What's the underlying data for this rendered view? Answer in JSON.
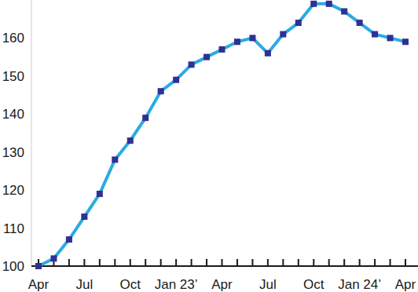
{
  "chart_data": {
    "type": "line",
    "categories": [
      "Apr",
      null,
      null,
      "Jul",
      null,
      null,
      "Oct",
      null,
      null,
      "Jan 23’",
      null,
      null,
      "Apr",
      null,
      null,
      "Jul",
      null,
      null,
      "Oct",
      null,
      null,
      "Jan 24’",
      null,
      null,
      "Apr"
    ],
    "values": [
      100,
      102,
      107,
      113,
      119,
      128,
      133,
      139,
      146,
      149,
      153,
      155,
      157,
      159,
      160,
      156,
      161,
      164,
      169,
      169,
      167,
      164,
      161,
      160,
      159
    ],
    "color": "#29abe2",
    "marker": "square",
    "ylim": [
      100,
      170
    ],
    "yticks": [
      100,
      110,
      120,
      130,
      140,
      150,
      160
    ],
    "grid": false
  }
}
